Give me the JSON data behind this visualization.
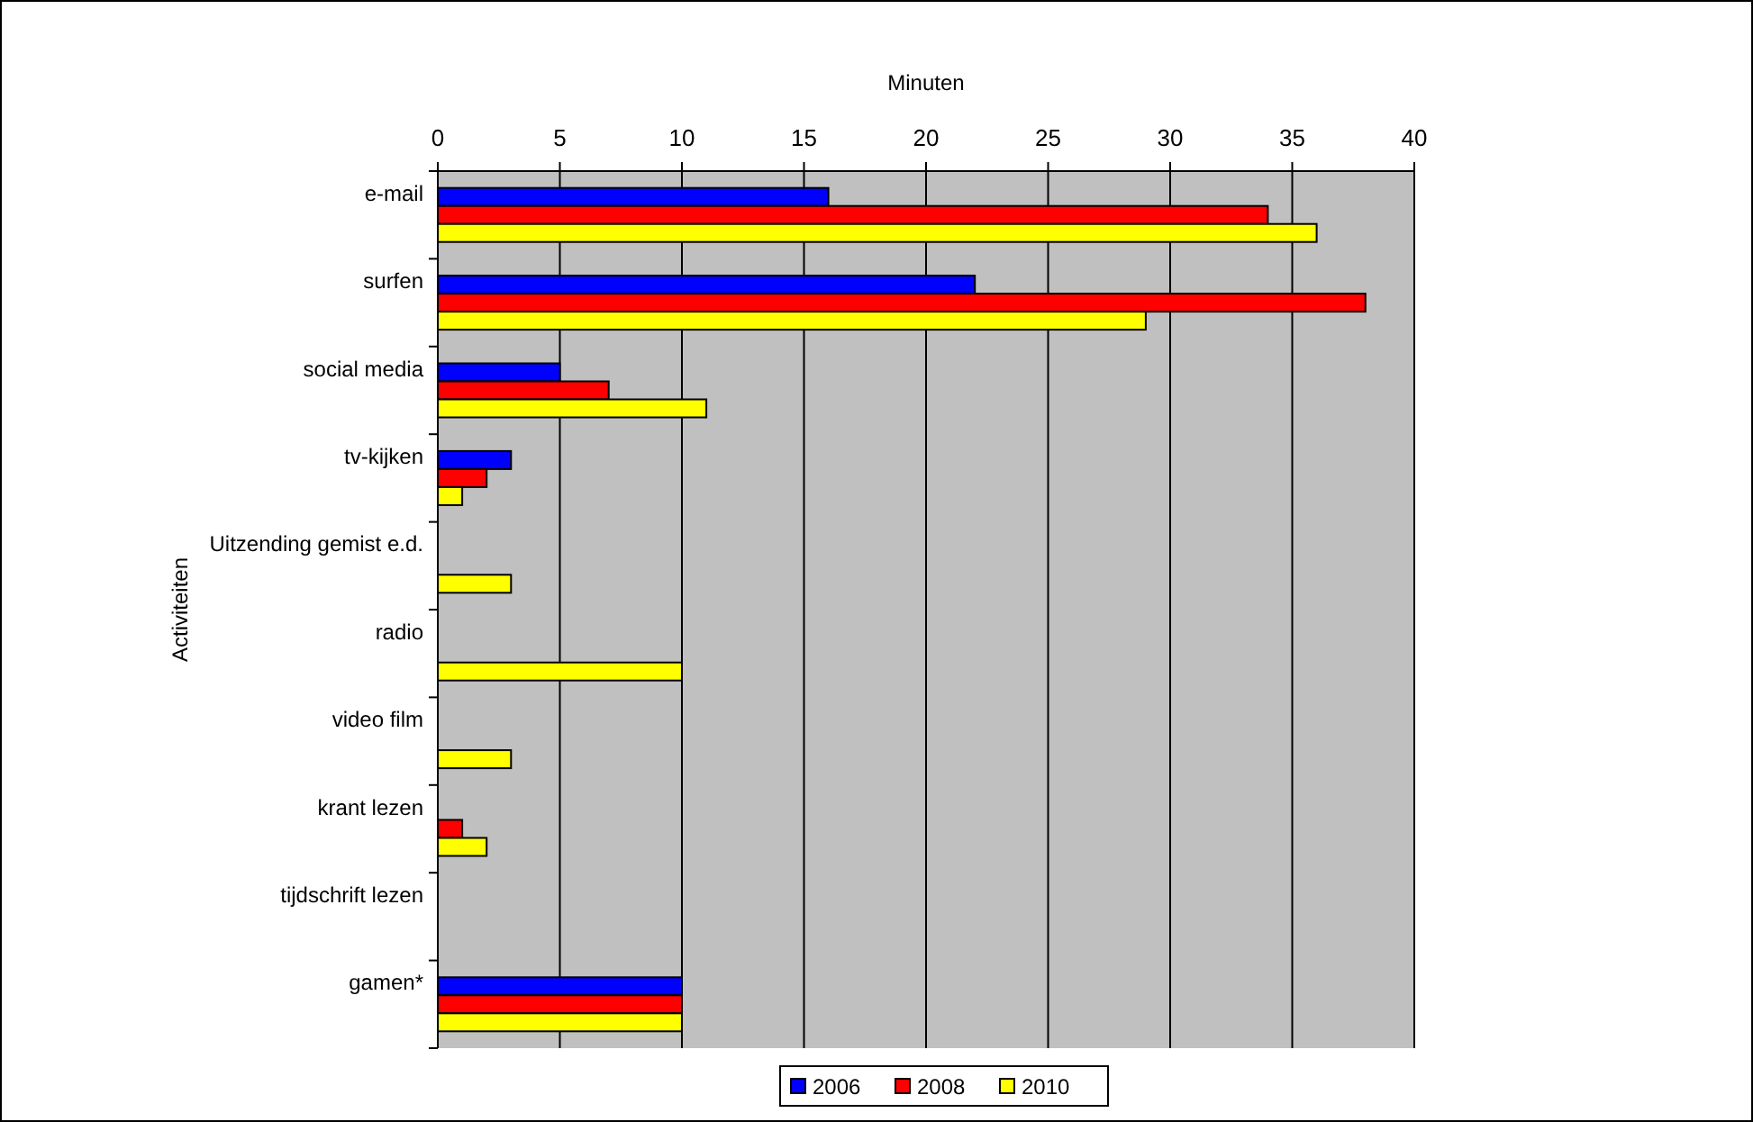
{
  "chart_data": {
    "type": "bar",
    "orientation": "horizontal",
    "xlabel": "Minuten",
    "ylabel": "Activiteiten",
    "categories": [
      "e-mail",
      "surfen",
      "social media",
      "tv-kijken",
      "Uitzending gemist e.d.",
      "radio",
      "video film",
      "krant lezen",
      "tijdschrift lezen",
      "gamen*"
    ],
    "series": [
      {
        "name": "2006",
        "color": "#0000ff",
        "values": [
          16,
          22,
          5,
          3,
          null,
          null,
          null,
          null,
          null,
          10
        ]
      },
      {
        "name": "2008",
        "color": "#ff0000",
        "values": [
          34,
          38,
          7,
          2,
          null,
          null,
          null,
          1,
          null,
          10
        ]
      },
      {
        "name": "2010",
        "color": "#ffff00",
        "values": [
          36,
          29,
          11,
          1,
          3,
          10,
          3,
          2,
          null,
          10
        ]
      }
    ],
    "xlim": [
      0,
      40
    ],
    "xticks": [
      0,
      5,
      10,
      15,
      20,
      25,
      30,
      35,
      40
    ],
    "grid": "x",
    "legend": "bottom"
  }
}
